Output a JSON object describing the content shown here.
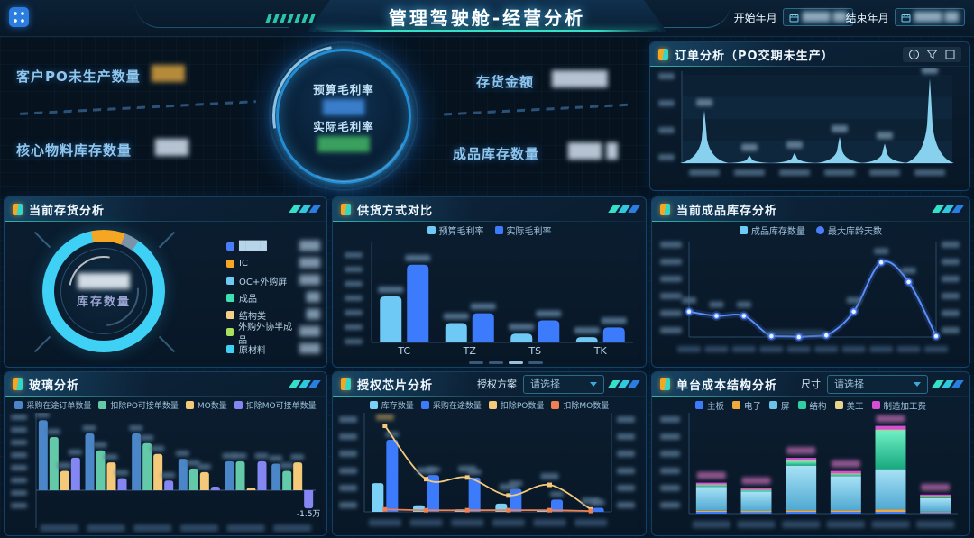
{
  "app": {
    "title": "管理驾驶舱-经营分析"
  },
  "header": {
    "start_date_label": "开始年月",
    "start_date_value": "████ ██",
    "end_date_label": "结束年月",
    "end_date_value": "████ ██"
  },
  "kpis": {
    "customer_po": {
      "label": "客户PO未生产数量",
      "value": "███"
    },
    "core_material": {
      "label": "核心物料库存数量",
      "value": "███"
    },
    "inventory_amount": {
      "label": "存货金额",
      "value": "█████"
    },
    "finished_goods": {
      "label": "成品库存数量",
      "value": "███ █"
    },
    "gauge": {
      "budget_label": "预算毛利率",
      "budget_value": "████",
      "actual_label": "实际毛利率",
      "actual_value": "█████"
    }
  },
  "panels": {
    "order": {
      "title": "订单分析（PO交期未生产）",
      "icons": [
        "info-icon",
        "filter-icon",
        "expand-icon"
      ]
    },
    "inventory": {
      "title": "当前存货分析",
      "center_value": "█████",
      "center_label": "库存数量"
    },
    "supply": {
      "title": "供货方式对比"
    },
    "finished": {
      "title": "当前成品库存分析"
    },
    "glass": {
      "title": "玻璃分析"
    },
    "chip": {
      "title": "授权芯片分析",
      "filter_label": "授权方案",
      "filter_value": "请选择"
    },
    "cost": {
      "title": "单台成本结构分析",
      "filter_label": "尺寸",
      "filter_value": "请选择"
    }
  },
  "chart_data": [
    {
      "panel": "order",
      "type": "area",
      "title": "订单分析（PO交期未生产）",
      "x_labels": [
        "████",
        "████",
        "████",
        "████",
        "████",
        "████"
      ],
      "values": [
        62,
        9,
        12,
        31,
        23,
        100
      ],
      "ylim": [
        0,
        100
      ],
      "color": "#8ed9f8",
      "value_labels": "blurred",
      "grid": "horizontal-bands"
    },
    {
      "panel": "inventory",
      "type": "pie",
      "donut": true,
      "center_label": "库存数量",
      "center_value": "█████",
      "segments": [
        {
          "label": "IC",
          "color": "#f5a623",
          "pct": 9
        },
        {
          "label": "████",
          "color": "#7a93a8",
          "pct": 4
        },
        {
          "label": "原材料",
          "color": "#3fd0f5",
          "pct": 87
        }
      ],
      "legend_position": "right",
      "legend": [
        {
          "name": "████",
          "color": "#4a7dfc",
          "value": "███"
        },
        {
          "name": "IC",
          "color": "#f5a623",
          "value": "███"
        },
        {
          "name": "OC+外购屏",
          "color": "#6fc9f5",
          "value": "███"
        },
        {
          "name": "成品",
          "color": "#3fe0b0",
          "value": "██"
        },
        {
          "name": "结构类",
          "color": "#f3d08a",
          "value": "██"
        },
        {
          "name": "外购外协半成品",
          "color": "#a8e05f",
          "value": "███"
        },
        {
          "name": "原材料",
          "color": "#3fd0f5",
          "value": "███"
        }
      ]
    },
    {
      "panel": "supply",
      "type": "bar",
      "categories": [
        "TC",
        "TZ",
        "TS",
        "TK"
      ],
      "series": [
        {
          "name": "预算毛利率",
          "color": "#6fc9f5",
          "values": [
            52,
            22,
            10,
            6
          ]
        },
        {
          "name": "实际毛利率",
          "color": "#3d7bfd",
          "values": [
            88,
            33,
            25,
            17
          ]
        }
      ],
      "ylim": [
        0,
        100
      ],
      "legend_position": "top",
      "value_labels": "blurred"
    },
    {
      "panel": "finished",
      "type": "line",
      "x_labels": [
        "████",
        "████",
        "████",
        "████",
        "████",
        "████",
        "████",
        "████",
        "████",
        "████"
      ],
      "legend": [
        {
          "name": "成品库存数量",
          "color": "#6fc9f5",
          "marker": "square"
        },
        {
          "name": "最大库龄天数",
          "color": "#4a7dfc",
          "marker": "circle"
        }
      ],
      "series": [
        {
          "name": "最大库龄天数",
          "color": "#4a7dfc",
          "values": [
            30,
            25,
            25,
            1,
            0,
            2,
            30,
            88,
            65,
            1
          ]
        }
      ],
      "ylim": [
        0,
        100
      ],
      "dual_axis": true
    },
    {
      "panel": "glass",
      "type": "bar",
      "categories": [
        "████",
        "████",
        "████",
        "████",
        "████",
        "████"
      ],
      "series": [
        {
          "name": "采购在途订单数量",
          "color": "#4a86c8",
          "values": [
            5.8,
            4.7,
            4.7,
            2.6,
            2.4,
            2.2
          ]
        },
        {
          "name": "扣除PO可接单数量",
          "color": "#63c9a8",
          "values": [
            4.4,
            3.3,
            3.9,
            1.8,
            2.4,
            1.6
          ]
        },
        {
          "name": "MO数量",
          "color": "#f5c97a",
          "values": [
            1.6,
            2.3,
            3.0,
            1.5,
            0.2,
            2.3
          ]
        },
        {
          "name": "扣除MO可接单数量",
          "color": "#8486f2",
          "values": [
            2.7,
            1.0,
            0.8,
            0.3,
            2.4,
            -1.5
          ]
        }
      ],
      "ylim": [
        -2,
        6
      ],
      "annotations": [
        {
          "text": "-1.5万",
          "series_index": 3,
          "category_index": 5
        }
      ]
    },
    {
      "panel": "chip",
      "type": "bar+line",
      "categories": [
        "████",
        "████",
        "████",
        "████",
        "████",
        "████"
      ],
      "bar_series": [
        {
          "name": "库存数量",
          "color": "#7ad0f5",
          "values": [
            35,
            8,
            3,
            10,
            2,
            0
          ]
        },
        {
          "name": "采购在途数量",
          "color": "#3d7bfd",
          "values": [
            88,
            45,
            42,
            28,
            15,
            5
          ]
        }
      ],
      "line_series": [
        {
          "name": "扣除PO数量",
          "color": "#f5c97a",
          "values": [
            105,
            40,
            42,
            20,
            33,
            3
          ]
        },
        {
          "name": "扣除MO数量",
          "color": "#f08050",
          "values": [
            3,
            2,
            2,
            2,
            2,
            1
          ]
        }
      ],
      "ylim": [
        0,
        110
      ],
      "dual_axis": true
    },
    {
      "panel": "cost",
      "type": "stacked-bar",
      "categories": [
        "████",
        "████",
        "████",
        "████",
        "████",
        "████"
      ],
      "series": [
        {
          "name": "主板",
          "color": "#3d7bfd",
          "values": [
            6,
            5,
            6,
            6,
            6,
            4
          ]
        },
        {
          "name": "电子",
          "color": "#f0a93d",
          "values": [
            4,
            4,
            5,
            5,
            8,
            3
          ]
        },
        {
          "name": "屏",
          "color": "#6cc3e8",
          "values": [
            80,
            65,
            150,
            115,
            135,
            45
          ]
        },
        {
          "name": "结构",
          "color": "#2fd0a4",
          "values": [
            6,
            5,
            15,
            6,
            130,
            6
          ]
        },
        {
          "name": "美工",
          "color": "#e8d48a",
          "values": [
            2,
            2,
            3,
            3,
            3,
            2
          ]
        },
        {
          "name": "制造加工费",
          "color": "#d44fd4",
          "values": [
            6,
            5,
            8,
            8,
            12,
            4
          ]
        }
      ],
      "ylim": [
        0,
        320
      ],
      "value_labels": "blurred"
    }
  ],
  "notes": "原图中数值、坐标刻度与部分类目为模糊处理（██ 表示模糊块）；图表数值为按像素估算的相对值"
}
